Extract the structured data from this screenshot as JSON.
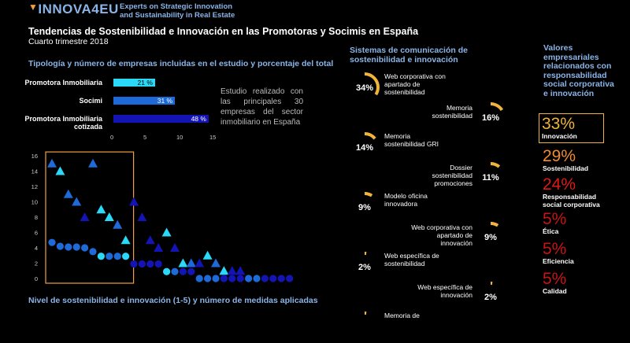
{
  "header": {
    "brand": "INNOVA4EU",
    "tagline_line1": "Experts on Strategic Innovation",
    "tagline_line2": "and Sustainability  in Real Estate"
  },
  "title": "Tendencias de Sostenibilidad e Innovación en las Promotoras y Socimis en España",
  "subtitle": "Cuarto trimestre 2018",
  "study_note": "Estudio realizado con las principales 30 empresas del sector inmobiliario en España",
  "colors": {
    "accent": "#f0b43c",
    "bar": "#2ad8f8",
    "title_blue": "#8ab4e8"
  },
  "chart_data": [
    {
      "type": "bar",
      "orientation": "horizontal",
      "title": "Tipología y número de empresas incluidas en el estudio y porcentaje del total",
      "categories": [
        "Promotora Inmobiliaria",
        "Socimi",
        "Promotora Inmobiliaria cotizada"
      ],
      "values": [
        6.3,
        9.3,
        14.4
      ],
      "data_labels": [
        "21 %",
        "31 %",
        "48 %"
      ],
      "bar_colors": [
        "#2ad8f8",
        "#1e6ad8",
        "#1414b4"
      ],
      "xticks": [
        0,
        5,
        10,
        15
      ],
      "xlim": [
        0,
        15
      ]
    },
    {
      "type": "scatter",
      "title": "Nivel de sostenibilidad e innovación (1-5) y número de medidas aplicadas",
      "ylim": [
        0,
        16
      ],
      "yticks": [
        0,
        2,
        4,
        6,
        8,
        10,
        12,
        14,
        16
      ],
      "grid": false,
      "series": [
        {
          "marker": "triangle",
          "points": [
            [
              1,
              15
            ],
            [
              2,
              14
            ],
            [
              3,
              11
            ],
            [
              4,
              10
            ],
            [
              5,
              8
            ],
            [
              6,
              15
            ],
            [
              7,
              9
            ],
            [
              8,
              8
            ],
            [
              9,
              7
            ],
            [
              10,
              5
            ],
            [
              11,
              10
            ],
            [
              12,
              8
            ],
            [
              13,
              5
            ],
            [
              14,
              4
            ],
            [
              15,
              6
            ],
            [
              16,
              4
            ],
            [
              17,
              2
            ],
            [
              18,
              2
            ],
            [
              19,
              2
            ],
            [
              20,
              3
            ],
            [
              21,
              2
            ],
            [
              22,
              1
            ],
            [
              23,
              1
            ],
            [
              24,
              1
            ]
          ],
          "colors": [
            "#1e6ad8",
            "#2ad8f8",
            "#1e6ad8",
            "#1e6ad8",
            "#1414b4",
            "#1e6ad8",
            "#2ad8f8",
            "#2ad8f8",
            "#1e6ad8",
            "#2ad8f8",
            "#1414b4",
            "#1414b4",
            "#1414b4",
            "#1414b4",
            "#2ad8f8",
            "#1414b4",
            "#2ad8f8",
            "#1e6ad8",
            "#1414b4",
            "#2ad8f8",
            "#1e6ad8",
            "#2ad8f8",
            "#1414b4",
            "#1414b4"
          ]
        },
        {
          "marker": "circle",
          "points": [
            [
              1,
              4.7
            ],
            [
              2,
              4.2
            ],
            [
              3,
              4.1
            ],
            [
              4,
              4.1
            ],
            [
              5,
              4.0
            ],
            [
              6,
              3.5
            ],
            [
              7,
              2.9
            ],
            [
              8,
              2.9
            ],
            [
              9,
              2.9
            ],
            [
              10,
              2.9
            ],
            [
              11,
              1.9
            ],
            [
              12,
              1.9
            ],
            [
              13,
              1.9
            ],
            [
              14,
              1.9
            ],
            [
              15,
              0.9
            ],
            [
              16,
              0.9
            ],
            [
              17,
              0.9
            ],
            [
              18,
              0.9
            ],
            [
              19,
              0
            ],
            [
              20,
              0
            ],
            [
              21,
              0
            ],
            [
              22,
              0
            ],
            [
              23,
              0
            ],
            [
              24,
              0
            ],
            [
              25,
              0
            ],
            [
              26,
              0
            ],
            [
              27,
              0
            ],
            [
              28,
              0
            ],
            [
              29,
              0
            ],
            [
              30,
              0
            ]
          ],
          "colors": [
            "#1e6ad8",
            "#1e6ad8",
            "#1e6ad8",
            "#1e6ad8",
            "#1e6ad8",
            "#1e6ad8",
            "#2ad8f8",
            "#1e6ad8",
            "#1e6ad8",
            "#2ad8f8",
            "#1414b4",
            "#1414b4",
            "#1414b4",
            "#1414b4",
            "#2ad8f8",
            "#1e6ad8",
            "#1414b4",
            "#1414b4",
            "#1e6ad8",
            "#1e6ad8",
            "#1e6ad8",
            "#1414b4",
            "#1414b4",
            "#1414b4",
            "#1e6ad8",
            "#1e6ad8",
            "#1414b4",
            "#1414b4",
            "#1414b4",
            "#1414b4"
          ]
        }
      ]
    },
    {
      "type": "gauge_list",
      "title_line1": "Sistemas de comunicación de",
      "title_line2": "sostenibilidad e innovación",
      "items": [
        {
          "label_lines": [
            "Web corporativa con",
            "apartado de",
            "sostenibilidad"
          ],
          "value": 34,
          "display": "34%"
        },
        {
          "label_lines": [
            "Memoria",
            "sostenibilidad"
          ],
          "value": 16,
          "display": "16%"
        },
        {
          "label_lines": [
            "Memoria",
            "sostenibilidad GRI"
          ],
          "value": 14,
          "display": "14%"
        },
        {
          "label_lines": [
            "Dossier",
            "sostenibilidad",
            "promociones"
          ],
          "value": 11,
          "display": "11%"
        },
        {
          "label_lines": [
            "Modelo oficina",
            "innovadora"
          ],
          "value": 9,
          "display": "9%"
        },
        {
          "label_lines": [
            "Web corporativa con",
            "apartado de",
            "innovación"
          ],
          "value": 9,
          "display": "9%"
        },
        {
          "label_lines": [
            "Web específica de",
            "sostenibilidad"
          ],
          "value": 2,
          "display": "2%"
        },
        {
          "label_lines": [
            "Web específica de",
            "innovación"
          ],
          "value": 2,
          "display": "2%"
        },
        {
          "label_lines": [
            "Memoria de"
          ],
          "value": 2,
          "display": ""
        }
      ]
    },
    {
      "type": "table",
      "title_lines": [
        "Valores",
        "empresariales",
        "relacionados con",
        "responsabilidad",
        "social corporativa",
        "e innovación"
      ],
      "rows": [
        {
          "value": "33%",
          "label_lines": [
            "Innovación"
          ],
          "color": "#f0b43c",
          "boxed": true
        },
        {
          "value": "29%",
          "label_lines": [
            "Sostenibilidad"
          ],
          "color": "#f08c32"
        },
        {
          "value": "24%",
          "label_lines": [
            "Responsabilidad",
            "social corporativa"
          ],
          "color": "#e01818"
        },
        {
          "value": "5%",
          "label_lines": [
            "Ética"
          ],
          "color": "#c81414"
        },
        {
          "value": "5%",
          "label_lines": [
            "Eficiencia"
          ],
          "color": "#c81414"
        },
        {
          "value": "5%",
          "label_lines": [
            "Calidad"
          ],
          "color": "#c81414"
        }
      ]
    }
  ]
}
